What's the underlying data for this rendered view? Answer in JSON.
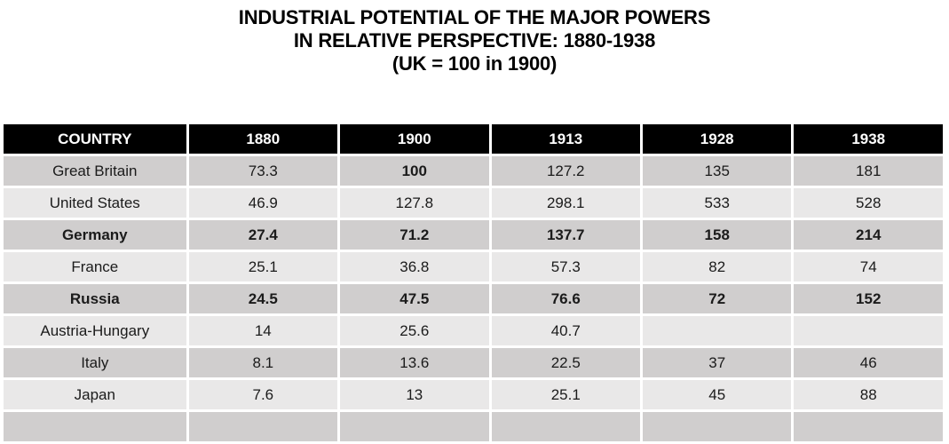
{
  "title": {
    "line1": "INDUSTRIAL POTENTIAL OF THE MAJOR POWERS",
    "line2": "IN RELATIVE PERSPECTIVE: 1880-1938",
    "line3": "(UK = 100 in 1900)"
  },
  "table": {
    "columns": [
      "COUNTRY",
      "1880",
      "1900",
      "1913",
      "1928",
      "1938"
    ],
    "rows": [
      {
        "country": "Great Britain",
        "values": [
          "73.3",
          "100",
          "127.2",
          "135",
          "181"
        ],
        "bold_row": false,
        "bold_cells": [
          1
        ]
      },
      {
        "country": "United States",
        "values": [
          "46.9",
          "127.8",
          "298.1",
          "533",
          "528"
        ],
        "bold_row": false,
        "bold_cells": []
      },
      {
        "country": "Germany",
        "values": [
          "27.4",
          "71.2",
          "137.7",
          "158",
          "214"
        ],
        "bold_row": true,
        "bold_cells": []
      },
      {
        "country": "France",
        "values": [
          "25.1",
          "36.8",
          "57.3",
          "82",
          "74"
        ],
        "bold_row": false,
        "bold_cells": []
      },
      {
        "country": "Russia",
        "values": [
          "24.5",
          "47.5",
          "76.6",
          "72",
          "152"
        ],
        "bold_row": true,
        "bold_cells": []
      },
      {
        "country": "Austria-Hungary",
        "values": [
          "14",
          "25.6",
          "40.7",
          "",
          ""
        ],
        "bold_row": false,
        "bold_cells": []
      },
      {
        "country": "Italy",
        "values": [
          "8.1",
          "13.6",
          "22.5",
          "37",
          "46"
        ],
        "bold_row": false,
        "bold_cells": []
      },
      {
        "country": "Japan",
        "values": [
          "7.6",
          "13",
          "25.1",
          "45",
          "88"
        ],
        "bold_row": false,
        "bold_cells": []
      }
    ]
  },
  "colors": {
    "header_bg": "#000000",
    "header_text": "#ffffff",
    "stripe_dark": "#d0cece",
    "stripe_light": "#e9e8e8",
    "body_text": "#1b1b1b",
    "page_bg": "#ffffff"
  },
  "chart_data": {
    "type": "table",
    "title": "INDUSTRIAL POTENTIAL OF THE MAJOR POWERS IN RELATIVE PERSPECTIVE: 1880-1938 (UK = 100 in 1900)",
    "columns": [
      "COUNTRY",
      "1880",
      "1900",
      "1913",
      "1928",
      "1938"
    ],
    "rows": [
      [
        "Great Britain",
        73.3,
        100,
        127.2,
        135,
        181
      ],
      [
        "United States",
        46.9,
        127.8,
        298.1,
        533,
        528
      ],
      [
        "Germany",
        27.4,
        71.2,
        137.7,
        158,
        214
      ],
      [
        "France",
        25.1,
        36.8,
        57.3,
        82,
        74
      ],
      [
        "Russia",
        24.5,
        47.5,
        76.6,
        72,
        152
      ],
      [
        "Austria-Hungary",
        14,
        25.6,
        40.7,
        null,
        null
      ],
      [
        "Italy",
        8.1,
        13.6,
        22.5,
        37,
        46
      ],
      [
        "Japan",
        7.6,
        13,
        25.1,
        45,
        88
      ]
    ],
    "notes": "Bold emphasis on Germany and Russia rows and on Great Britain 1900 value (100). Austria-Hungary has no values for 1928 and 1938."
  }
}
